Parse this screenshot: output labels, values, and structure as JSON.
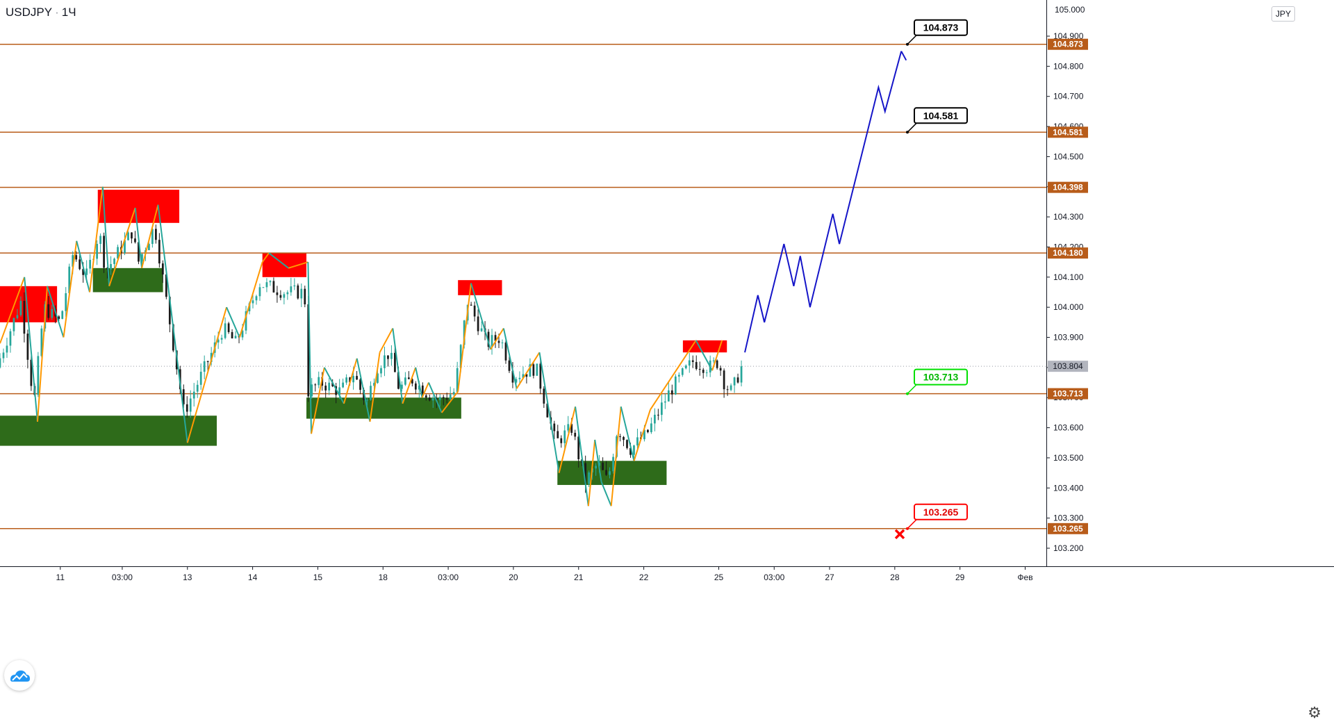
{
  "header": {
    "symbol": "USDJPY",
    "separator": "·",
    "interval": "1Ч"
  },
  "currency_badge": "JPY",
  "corner_tick": "105.000",
  "icons": {
    "logo": "tradingview-cloud-icon",
    "settings": "gear-icon"
  },
  "colors": {
    "level_line": "#b85c1a",
    "level_label_bg": "#b85c1a",
    "bull_candle": "#26a69a",
    "bear_candle": "#1a1a1a",
    "supply_zone": "#ff0000",
    "demand_zone": "#2e6b1a",
    "zigzag_up": "#ff9800",
    "zigzag_down": "#26a69a",
    "forecast": "#1515c8",
    "current_price_bg": "#b2b5be",
    "callout_green": "#00e000",
    "callout_red": "#ff0000"
  },
  "chart_data": {
    "type": "candlestick",
    "symbol": "USDJPY",
    "timeframe": "1H",
    "ylim": [
      103.14,
      105.02
    ],
    "y_axis_ticks": [
      "103.200",
      "103.300",
      "103.400",
      "103.500",
      "103.600",
      "103.700",
      "103.800",
      "103.900",
      "104.000",
      "104.100",
      "104.200",
      "104.300",
      "104.400",
      "104.500",
      "104.600",
      "104.700",
      "104.800",
      "104.900"
    ],
    "x_axis_ticks": [
      {
        "label": "11",
        "x": 8
      },
      {
        "label": "03:00",
        "x": 27
      },
      {
        "label": "13",
        "x": 47
      },
      {
        "label": "14",
        "x": 67
      },
      {
        "label": "15",
        "x": 87
      },
      {
        "label": "18",
        "x": 107
      },
      {
        "label": "03:00",
        "x": 127
      },
      {
        "label": "20",
        "x": 147
      },
      {
        "label": "21",
        "x": 167
      },
      {
        "label": "22",
        "x": 187
      },
      {
        "label": "25",
        "x": 210
      },
      {
        "label": "03:00",
        "x": 227
      },
      {
        "label": "27",
        "x": 244
      },
      {
        "label": "28",
        "x": 264
      },
      {
        "label": "29",
        "x": 284
      },
      {
        "label": "Фев",
        "x": 304
      }
    ],
    "xlim": [
      -10.5,
      310.5
    ],
    "price_levels": [
      "104.873",
      "104.581",
      "104.398",
      "104.180",
      "103.713",
      "103.265"
    ],
    "current_price": "103.804",
    "callouts": [
      {
        "label": "104.873",
        "price": 104.873,
        "style": "black"
      },
      {
        "label": "104.581",
        "price": 104.581,
        "style": "black"
      },
      {
        "label": "103.713",
        "price": 103.713,
        "style": "green"
      },
      {
        "label": "103.265",
        "price": 103.265,
        "style": "red",
        "marker": "cross"
      }
    ],
    "supply_zones": [
      {
        "x": [
          -10.5,
          7
        ],
        "y": [
          103.95,
          104.07
        ]
      },
      {
        "x": [
          19.5,
          44.5
        ],
        "y": [
          104.28,
          104.39
        ]
      },
      {
        "x": [
          70,
          83.5
        ],
        "y": [
          104.1,
          104.18
        ]
      },
      {
        "x": [
          130,
          143.5
        ],
        "y": [
          104.04,
          104.09
        ]
      },
      {
        "x": [
          199,
          212.5
        ],
        "y": [
          103.85,
          103.89
        ]
      }
    ],
    "demand_zones": [
      {
        "x": [
          -10.5,
          56
        ],
        "y": [
          103.54,
          103.64
        ]
      },
      {
        "x": [
          18,
          39.5
        ],
        "y": [
          104.05,
          104.13
        ]
      },
      {
        "x": [
          83.5,
          131
        ],
        "y": [
          103.63,
          103.7
        ]
      },
      {
        "x": [
          160.5,
          194
        ],
        "y": [
          103.41,
          103.49
        ]
      }
    ],
    "forecast_path": [
      {
        "x": 218,
        "y": 103.85
      },
      {
        "x": 222,
        "y": 104.04
      },
      {
        "x": 224,
        "y": 103.95
      },
      {
        "x": 230,
        "y": 104.21
      },
      {
        "x": 233,
        "y": 104.07
      },
      {
        "x": 235,
        "y": 104.17
      },
      {
        "x": 238,
        "y": 104.0
      },
      {
        "x": 245,
        "y": 104.31
      },
      {
        "x": 247,
        "y": 104.21
      },
      {
        "x": 259,
        "y": 104.73
      },
      {
        "x": 261,
        "y": 104.65
      },
      {
        "x": 266,
        "y": 104.85
      }
    ],
    "forecast_arrow_tail": {
      "x": 267.5,
      "y": 104.82
    },
    "zigzag": [
      {
        "x": -10.5,
        "y": 103.88
      },
      {
        "x": -3,
        "y": 104.1
      },
      {
        "x": 1,
        "y": 103.62
      },
      {
        "x": 4,
        "y": 104.07
      },
      {
        "x": 9,
        "y": 103.9
      },
      {
        "x": 13,
        "y": 104.22
      },
      {
        "x": 17,
        "y": 104.05
      },
      {
        "x": 21,
        "y": 104.4
      },
      {
        "x": 23,
        "y": 104.07
      },
      {
        "x": 31,
        "y": 104.33
      },
      {
        "x": 33,
        "y": 104.13
      },
      {
        "x": 38,
        "y": 104.34
      },
      {
        "x": 47,
        "y": 103.55
      },
      {
        "x": 59,
        "y": 104.0
      },
      {
        "x": 63,
        "y": 103.9
      },
      {
        "x": 70,
        "y": 104.15
      },
      {
        "x": 72,
        "y": 104.18
      },
      {
        "x": 78,
        "y": 104.13
      },
      {
        "x": 84,
        "y": 104.15
      },
      {
        "x": 85,
        "y": 103.58
      },
      {
        "x": 89,
        "y": 103.8
      },
      {
        "x": 95,
        "y": 103.68
      },
      {
        "x": 99,
        "y": 103.83
      },
      {
        "x": 103,
        "y": 103.62
      },
      {
        "x": 106,
        "y": 103.85
      },
      {
        "x": 110,
        "y": 103.93
      },
      {
        "x": 113,
        "y": 103.68
      },
      {
        "x": 117,
        "y": 103.8
      },
      {
        "x": 119,
        "y": 103.7
      },
      {
        "x": 121,
        "y": 103.75
      },
      {
        "x": 125,
        "y": 103.65
      },
      {
        "x": 130,
        "y": 103.72
      },
      {
        "x": 134,
        "y": 104.08
      },
      {
        "x": 140,
        "y": 103.86
      },
      {
        "x": 144,
        "y": 103.93
      },
      {
        "x": 148,
        "y": 103.73
      },
      {
        "x": 155,
        "y": 103.85
      },
      {
        "x": 161,
        "y": 103.45
      },
      {
        "x": 166,
        "y": 103.67
      },
      {
        "x": 170,
        "y": 103.34
      },
      {
        "x": 172,
        "y": 103.56
      },
      {
        "x": 174,
        "y": 103.42
      },
      {
        "x": 177,
        "y": 103.34
      },
      {
        "x": 180,
        "y": 103.67
      },
      {
        "x": 184,
        "y": 103.49
      },
      {
        "x": 189,
        "y": 103.66
      },
      {
        "x": 203,
        "y": 103.89
      },
      {
        "x": 208,
        "y": 103.79
      },
      {
        "x": 211,
        "y": 103.89
      }
    ],
    "candles_count": 215,
    "candle_anchors": [
      {
        "x": -10.5,
        "y": 103.8
      },
      {
        "x": -3,
        "y": 104.02
      },
      {
        "x": 1,
        "y": 103.68
      },
      {
        "x": 4,
        "y": 104.0
      },
      {
        "x": 9,
        "y": 103.95
      },
      {
        "x": 13,
        "y": 104.18
      },
      {
        "x": 17,
        "y": 104.1
      },
      {
        "x": 21,
        "y": 104.25
      },
      {
        "x": 23,
        "y": 104.12
      },
      {
        "x": 31,
        "y": 104.25
      },
      {
        "x": 33,
        "y": 104.15
      },
      {
        "x": 38,
        "y": 104.27
      },
      {
        "x": 47,
        "y": 103.65
      },
      {
        "x": 59,
        "y": 103.93
      },
      {
        "x": 63,
        "y": 103.88
      },
      {
        "x": 70,
        "y": 104.08
      },
      {
        "x": 78,
        "y": 104.05
      },
      {
        "x": 84,
        "y": 104.05
      },
      {
        "x": 85,
        "y": 103.72
      },
      {
        "x": 89,
        "y": 103.75
      },
      {
        "x": 95,
        "y": 103.72
      },
      {
        "x": 99,
        "y": 103.78
      },
      {
        "x": 103,
        "y": 103.68
      },
      {
        "x": 106,
        "y": 103.8
      },
      {
        "x": 110,
        "y": 103.85
      },
      {
        "x": 113,
        "y": 103.73
      },
      {
        "x": 117,
        "y": 103.76
      },
      {
        "x": 121,
        "y": 103.72
      },
      {
        "x": 125,
        "y": 103.69
      },
      {
        "x": 130,
        "y": 103.72
      },
      {
        "x": 134,
        "y": 104.02
      },
      {
        "x": 140,
        "y": 103.88
      },
      {
        "x": 144,
        "y": 103.9
      },
      {
        "x": 148,
        "y": 103.77
      },
      {
        "x": 155,
        "y": 103.8
      },
      {
        "x": 161,
        "y": 103.55
      },
      {
        "x": 166,
        "y": 103.6
      },
      {
        "x": 170,
        "y": 103.42
      },
      {
        "x": 174,
        "y": 103.48
      },
      {
        "x": 177,
        "y": 103.42
      },
      {
        "x": 180,
        "y": 103.6
      },
      {
        "x": 184,
        "y": 103.53
      },
      {
        "x": 189,
        "y": 103.58
      },
      {
        "x": 196,
        "y": 103.72
      },
      {
        "x": 203,
        "y": 103.82
      },
      {
        "x": 208,
        "y": 103.8
      },
      {
        "x": 211,
        "y": 103.82
      },
      {
        "x": 213,
        "y": 103.74
      },
      {
        "x": 215,
        "y": 103.72
      },
      {
        "x": 218,
        "y": 103.8
      }
    ]
  }
}
